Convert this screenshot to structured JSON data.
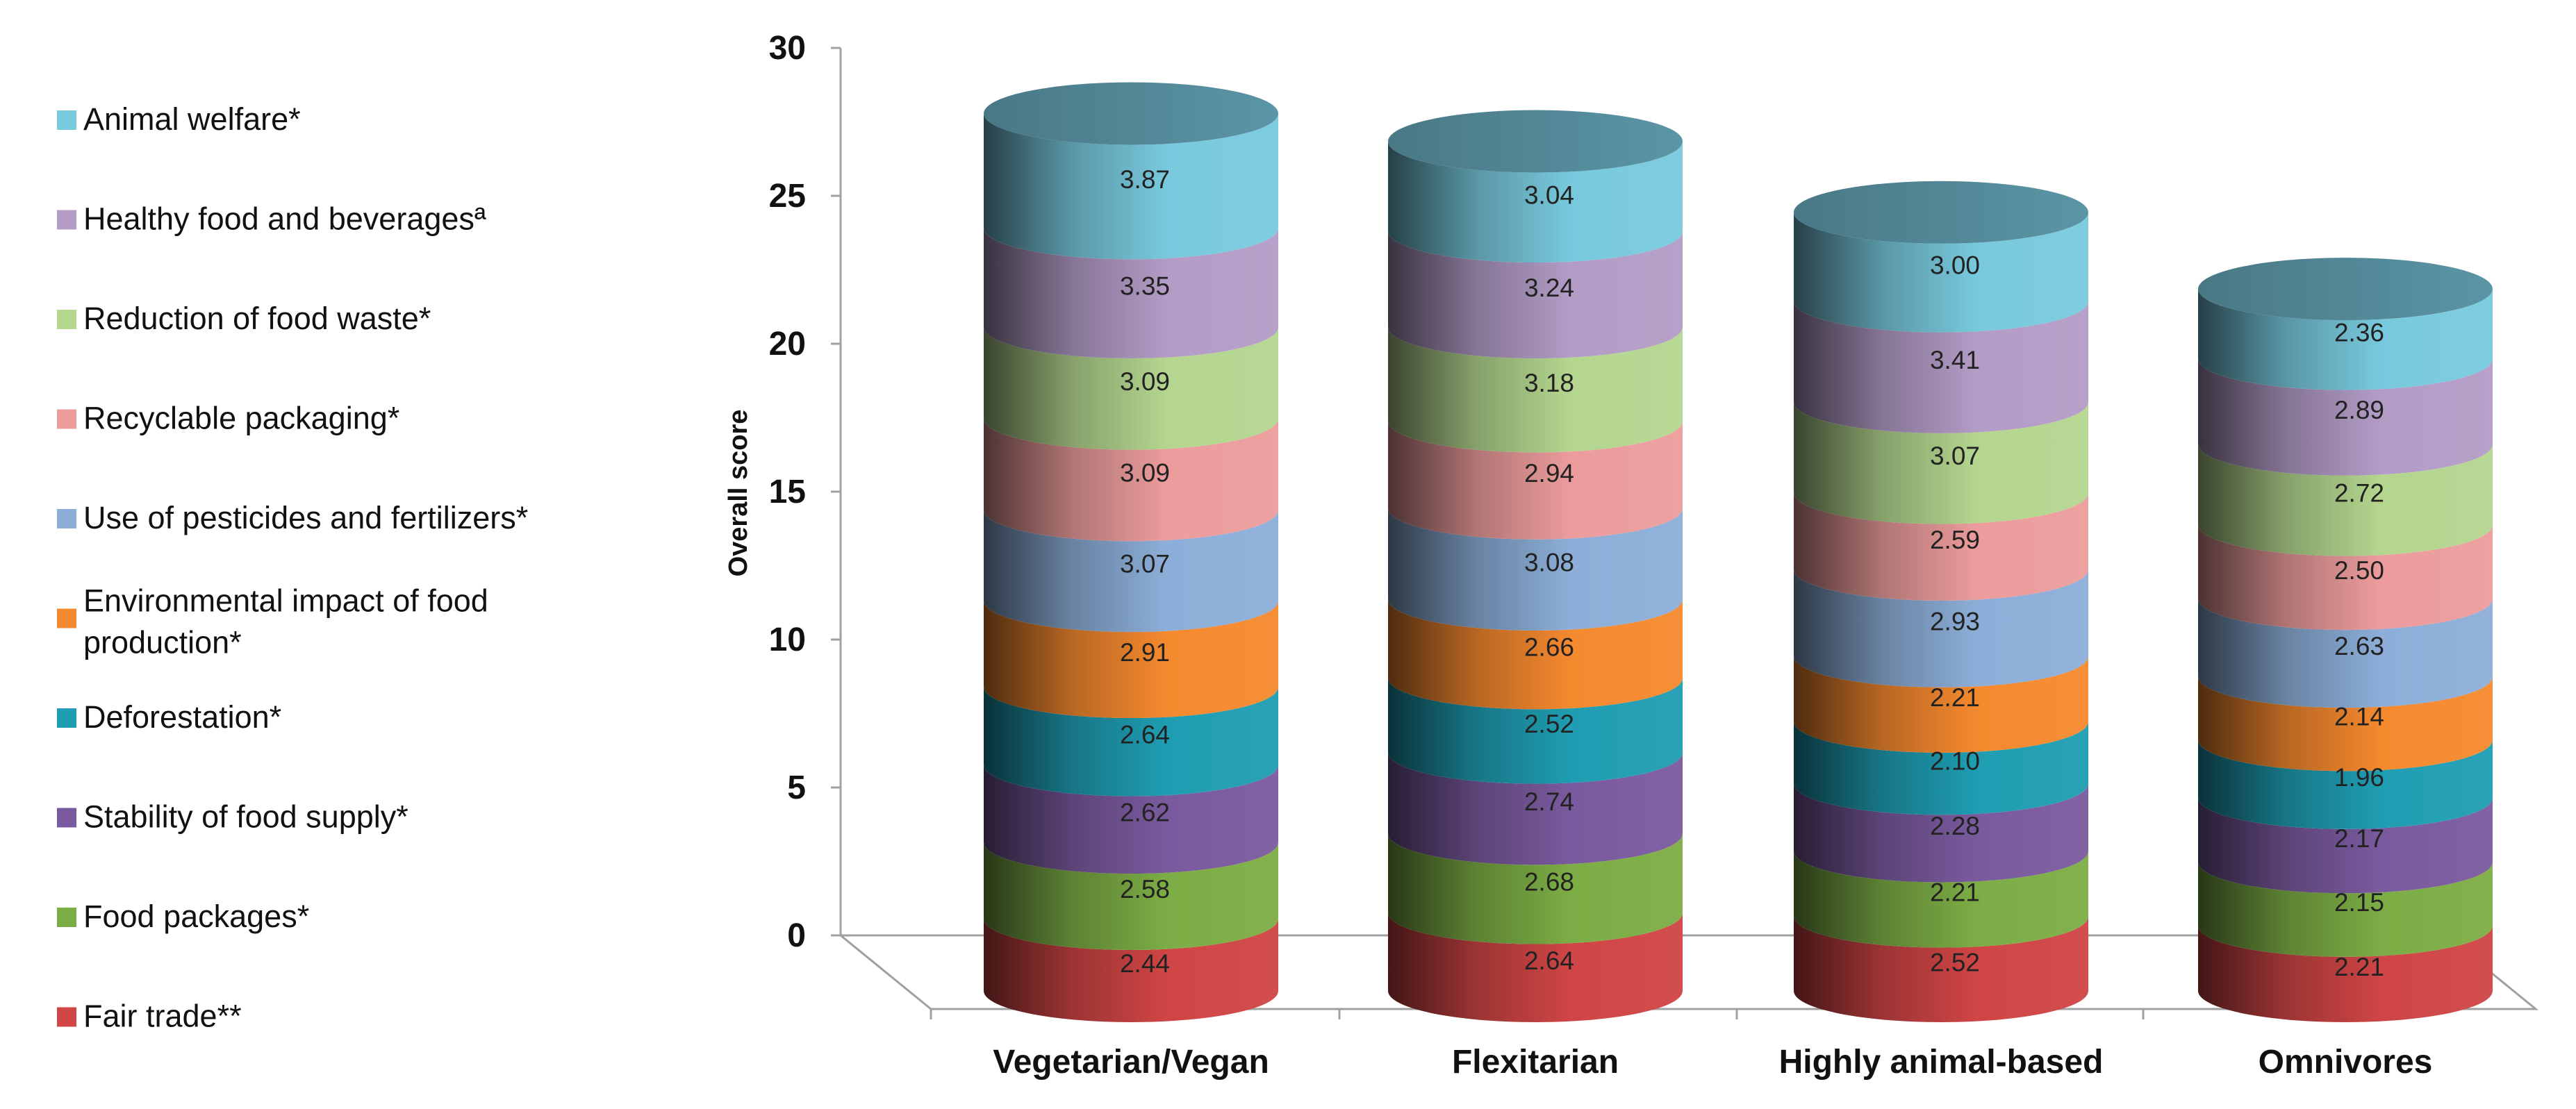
{
  "chart_data": {
    "type": "bar",
    "subtype": "stacked-3d-cylinder",
    "title": "",
    "xlabel": "",
    "ylabel": "Overall score",
    "ylim": [
      0,
      30
    ],
    "yticks": [
      0,
      5,
      10,
      15,
      20,
      25,
      30
    ],
    "grid": false,
    "legend_position": "left",
    "categories": [
      "Vegetarian/Vegan",
      "Flexitarian",
      "Highly animal-based",
      "Omnivores"
    ],
    "series": [
      {
        "name": "Fair  trade**",
        "color": "#d04545",
        "values": [
          2.44,
          2.64,
          2.52,
          2.21
        ]
      },
      {
        "name": "Food packages*",
        "color": "#7cad45",
        "values": [
          2.58,
          2.68,
          2.21,
          2.15
        ]
      },
      {
        "name": "Stability of food supply*",
        "color": "#7a5a9e",
        "values": [
          2.62,
          2.74,
          2.28,
          2.17
        ]
      },
      {
        "name": "Deforestation*",
        "color": "#1f9db2",
        "values": [
          2.64,
          2.52,
          2.1,
          1.96
        ]
      },
      {
        "name": "Environmental impact of food production*",
        "color": "#f5892e",
        "values": [
          2.91,
          2.66,
          2.21,
          2.14
        ]
      },
      {
        "name": "Use of pesticides and fertilizers*",
        "color": "#8caed8",
        "values": [
          3.07,
          3.08,
          2.93,
          2.63
        ]
      },
      {
        "name": "Recyclable packaging*",
        "color": "#ec9c9c",
        "values": [
          3.09,
          2.94,
          2.59,
          2.5
        ]
      },
      {
        "name": "Reduction of food waste*",
        "color": "#b4d68f",
        "values": [
          3.09,
          3.18,
          3.07,
          2.72
        ]
      },
      {
        "name": "Healthy food and beveragesª",
        "color": "#b39cc6",
        "values": [
          3.35,
          3.24,
          3.41,
          2.89
        ]
      },
      {
        "name": "Animal welfare*",
        "color": "#78c9dd",
        "values": [
          3.87,
          3.04,
          3.0,
          2.36
        ]
      }
    ],
    "top_cap_color": "#5b96a6"
  }
}
